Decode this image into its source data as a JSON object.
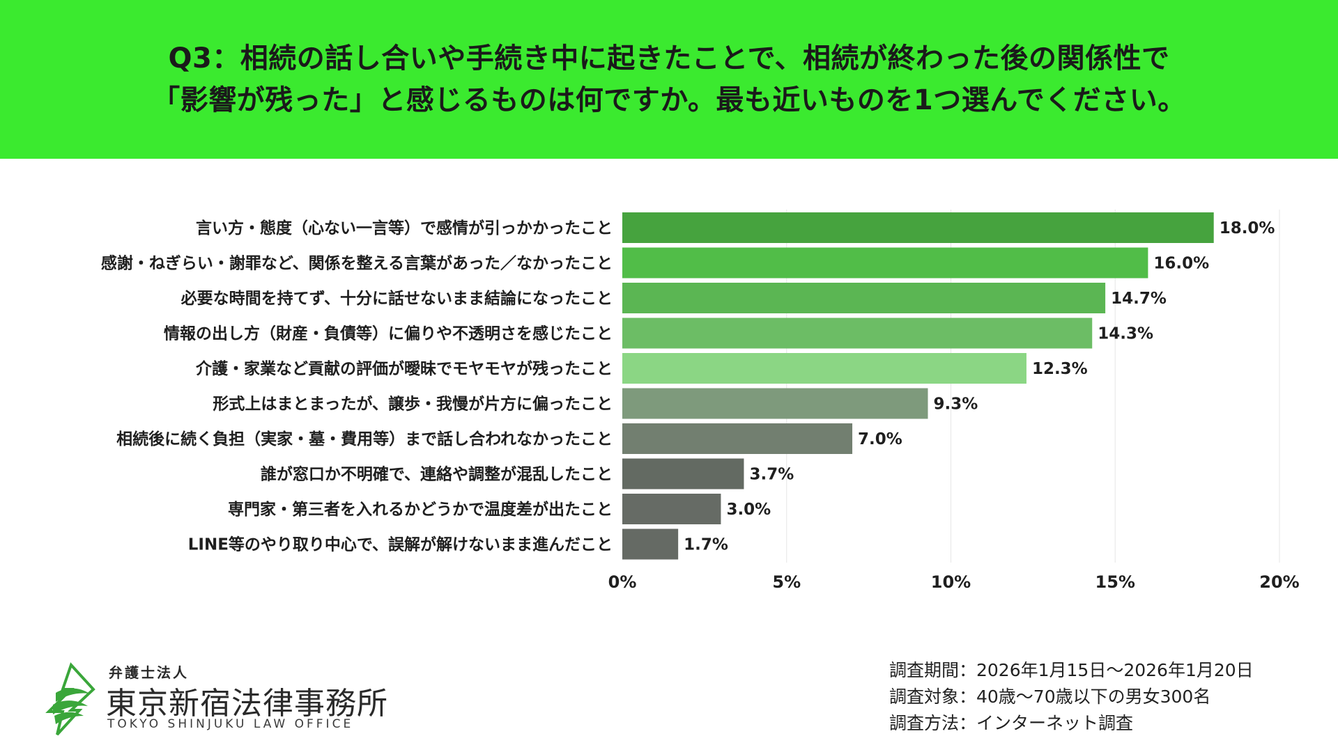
{
  "header": {
    "title_line1": "Q3：相続の話し合いや手続き中に起きたことで、相続が終わった後の関係性で",
    "title_line2": "「影響が残った」と感じるものは何ですか。最も近いものを1つ選んでください。",
    "bg_color": "#3bea2f"
  },
  "chart_data": {
    "type": "bar",
    "orientation": "horizontal",
    "title": "",
    "xlabel": "",
    "ylabel": "",
    "xlim": [
      0,
      20
    ],
    "x_ticks": [
      0,
      5,
      10,
      15,
      20
    ],
    "x_tick_labels": [
      "0%",
      "5%",
      "10%",
      "15%",
      "20%"
    ],
    "grid": "vertical",
    "legend": "none",
    "categories": [
      "言い方・態度（心ない一言等）で感情が引っかかったこと",
      "感謝・ねぎらい・謝罪など、関係を整える言葉があった／なかったこと",
      "必要な時間を持てず、十分に話せないまま結論になったこと",
      "情報の出し方（財産・負債等）に偏りや不透明さを感じたこと",
      "介護・家業など貢献の評価が曖昧でモヤモヤが残ったこと",
      "形式上はまとまったが、譲歩・我慢が片方に偏ったこと",
      "相続後に続く負担（実家・墓・費用等）まで話し合われなかったこと",
      "誰が窓口か不明確で、連絡や調整が混乱したこと",
      "専門家・第三者を入れるかどうかで温度差が出たこと",
      "LINE等のやり取り中心で、誤解が解けないまま進んだこと"
    ],
    "values": [
      18.0,
      16.0,
      14.7,
      14.3,
      12.3,
      9.3,
      7.0,
      3.7,
      3.0,
      1.7
    ],
    "value_labels": [
      "18.0%",
      "16.0%",
      "14.7%",
      "14.3%",
      "12.3%",
      "9.3%",
      "7.0%",
      "3.7%",
      "3.0%",
      "1.7%"
    ],
    "bar_colors": [
      "#46a33e",
      "#51bd48",
      "#5bb653",
      "#6cbd65",
      "#8bd684",
      "#7e9a7c",
      "#727f70",
      "#636a62",
      "#666b65",
      "#656a64"
    ]
  },
  "logo": {
    "sub": "弁護士法人",
    "name": "東京新宿法律事務所",
    "en": "TOKYO SHINJUKU LAW OFFICE",
    "mark_color": "#3aa63a"
  },
  "survey": {
    "line1": "調査期間：2026年1月15日〜2026年1月20日",
    "line2": "調査対象：40歳〜70歳以下の男女300名",
    "line3": "調査方法：インターネット調査"
  }
}
